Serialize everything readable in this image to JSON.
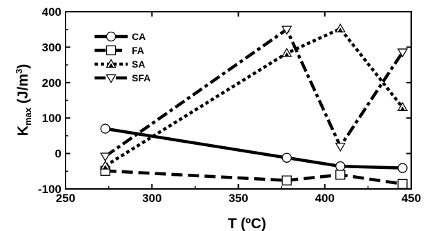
{
  "chart_data": {
    "type": "line",
    "xlabel": "T (ºC)",
    "ylabel": {
      "main": "K",
      "sub": "max",
      "unit_open": " (J/m",
      "sup": "3",
      "unit_close": ")"
    },
    "xlim": [
      250,
      450
    ],
    "ylim": [
      -100,
      400
    ],
    "xticks": [
      250,
      300,
      350,
      400,
      450
    ],
    "yticks": [
      -100,
      0,
      100,
      200,
      300,
      400
    ],
    "grid": false,
    "legend_position": "top-left",
    "series": [
      {
        "name": "CA",
        "line": "solid",
        "marker": "circle",
        "x": [
          273,
          378,
          409,
          445
        ],
        "y": [
          70,
          -12,
          -36,
          -41
        ]
      },
      {
        "name": "FA",
        "line": "dash",
        "marker": "square",
        "x": [
          273,
          378,
          409,
          445
        ],
        "y": [
          -49,
          -76,
          -60,
          -86
        ]
      },
      {
        "name": "SA",
        "line": "dot",
        "marker": "triangle-up",
        "x": [
          273,
          378,
          409,
          445
        ],
        "y": [
          -35,
          283,
          352,
          130
        ]
      },
      {
        "name": "SFA",
        "line": "dashdot",
        "marker": "triangle-down",
        "x": [
          273,
          378,
          409,
          445
        ],
        "y": [
          -8,
          350,
          20,
          286
        ]
      }
    ]
  }
}
